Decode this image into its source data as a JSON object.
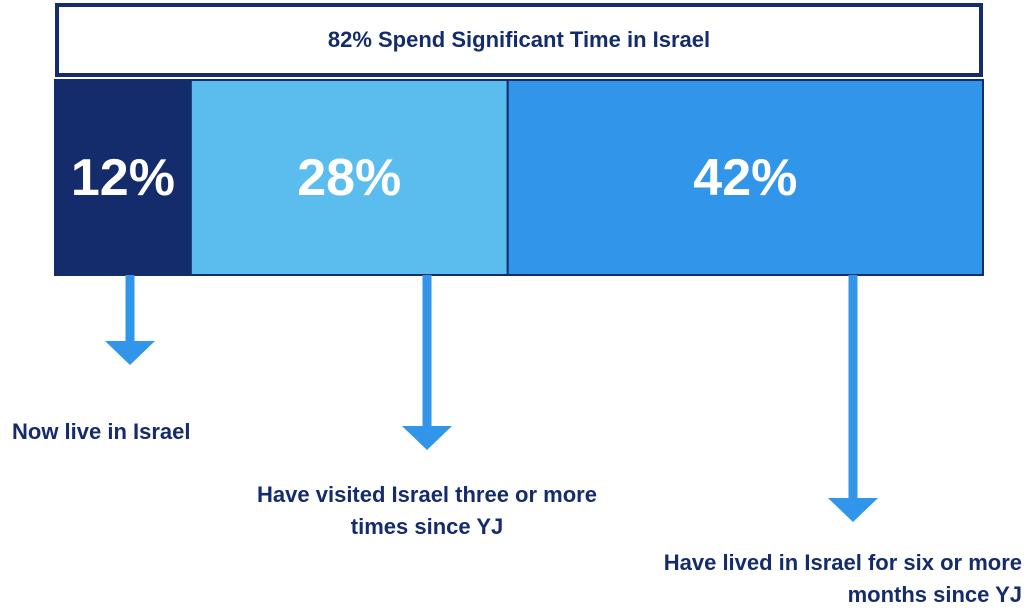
{
  "chart_data": {
    "type": "stacked-bar",
    "title": "82% Spend Significant Time in Israel",
    "xlim": [
      0,
      82
    ],
    "series": [
      {
        "name": "Now live in Israel",
        "color": "#142c6b",
        "values": [
          12
        ],
        "value_labels": [
          "12%"
        ]
      },
      {
        "name": "Have visited Israel three or more times since YJ",
        "color": "#5bbdee",
        "values": [
          28
        ],
        "value_labels": [
          "28%"
        ]
      },
      {
        "name": "Have lived in Israel for six or more months since YJ",
        "color": "#3196ea",
        "values": [
          42
        ],
        "value_labels": [
          "42%"
        ]
      }
    ]
  }
}
